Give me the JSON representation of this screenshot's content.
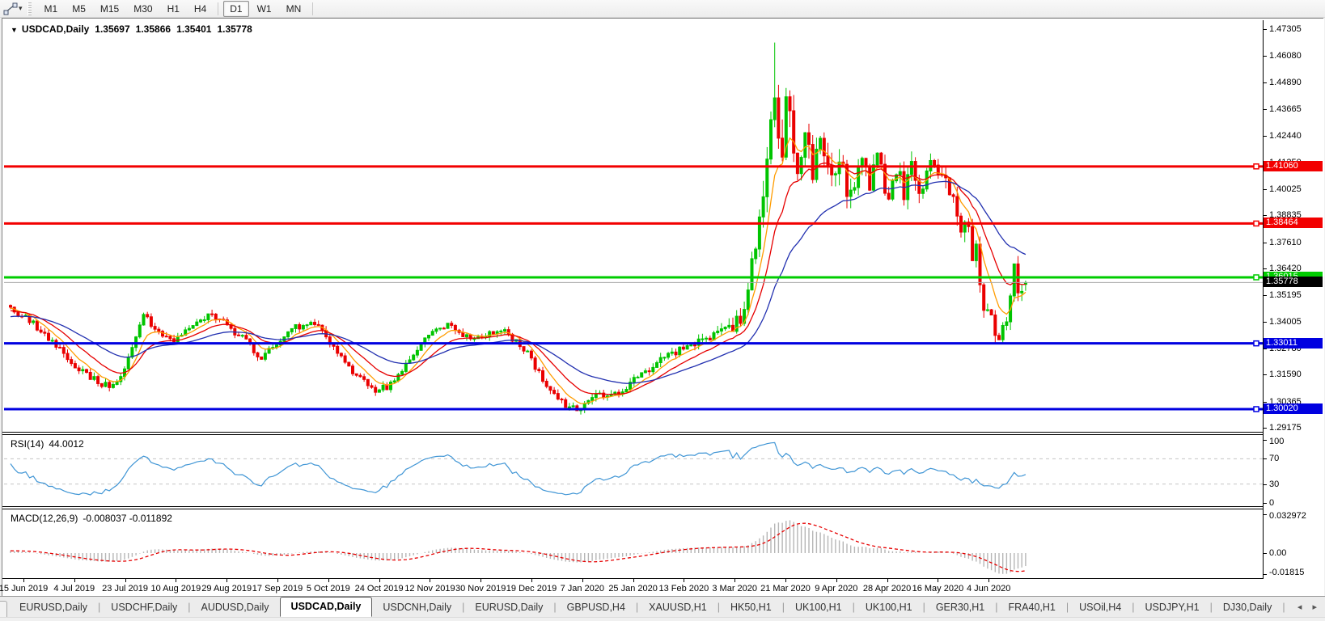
{
  "toolbar": {
    "dropdown_icon": "▾",
    "timeframes": [
      "M1",
      "M5",
      "M15",
      "M30",
      "H1",
      "H4",
      "D1",
      "W1",
      "MN"
    ],
    "active_timeframe": "D1",
    "group_break_after": "H4"
  },
  "chart_title": {
    "dropdown_glyph": "▼",
    "symbol": "USDCAD,Daily",
    "open": "1.35697",
    "high": "1.35866",
    "low": "1.35401",
    "close": "1.35778"
  },
  "chart_data": {
    "type": "candlestick",
    "symbol": "USDCAD",
    "timeframe": "Daily",
    "current_bar_ohlc": {
      "open": 1.35697,
      "high": 1.35866,
      "low": 1.35401,
      "close": 1.35778
    },
    "candle_colors": {
      "up": "#00c400",
      "down": "#ea0000"
    },
    "price_axis_ticks": [
      "1.47305",
      "1.46080",
      "1.44890",
      "1.43665",
      "1.42440",
      "1.41250",
      "1.40025",
      "1.38835",
      "1.37610",
      "1.36420",
      "1.35195",
      "1.34005",
      "1.32780",
      "1.31590",
      "1.30365",
      "1.29175"
    ],
    "date_axis_labels": [
      "15 Jun 2019",
      "4 Jul 2019",
      "23 Jul 2019",
      "10 Aug 2019",
      "29 Aug 2019",
      "17 Sep 2019",
      "5 Oct 2019",
      "24 Oct 2019",
      "12 Nov 2019",
      "30 Nov 2019",
      "19 Dec 2019",
      "7 Jan 2020",
      "25 Jan 2020",
      "13 Feb 2020",
      "3 Mar 2020",
      "21 Mar 2020",
      "9 Apr 2020",
      "28 Apr 2020",
      "16 May 2020",
      "4 Jun 2020"
    ],
    "bars_total": 268,
    "horizontal_lines": [
      {
        "price": 1.4106,
        "label": "1.41060",
        "color": "#f20000"
      },
      {
        "price": 1.38464,
        "label": "1.38464",
        "color": "#f20000"
      },
      {
        "price": 1.36015,
        "label": "1.36015",
        "color": "#00cc00"
      },
      {
        "price": 1.33011,
        "label": "1.33011",
        "color": "#0000e0"
      },
      {
        "price": 1.3002,
        "label": "1.30020",
        "color": "#0000e0"
      }
    ],
    "current_price": {
      "value": 1.35778,
      "label": "1.35778",
      "line_color": "#a8a8a8",
      "label_bg": "#000000"
    },
    "moving_averages": [
      {
        "name": "fast-ma",
        "period": 7,
        "color": "#ff9c00"
      },
      {
        "name": "medium-ma",
        "period": 15,
        "color": "#e60000"
      },
      {
        "name": "slow-ma",
        "period": 34,
        "color": "#2230b0"
      }
    ],
    "price_path": [
      [
        0,
        1.3462
      ],
      [
        3,
        1.3425
      ],
      [
        6,
        1.3388
      ],
      [
        9,
        1.3345
      ],
      [
        12,
        1.329
      ],
      [
        15,
        1.3235
      ],
      [
        18,
        1.3185
      ],
      [
        21,
        1.3148
      ],
      [
        24,
        1.3122
      ],
      [
        27,
        1.3108
      ],
      [
        29,
        1.3148
      ],
      [
        31,
        1.324
      ],
      [
        33,
        1.333
      ],
      [
        35,
        1.3424
      ],
      [
        37,
        1.3388
      ],
      [
        39,
        1.3348
      ],
      [
        41,
        1.3325
      ],
      [
        43,
        1.3314
      ],
      [
        45,
        1.334
      ],
      [
        47,
        1.3368
      ],
      [
        49,
        1.3392
      ],
      [
        51,
        1.3415
      ],
      [
        53,
        1.3432
      ],
      [
        55,
        1.3405
      ],
      [
        57,
        1.3382
      ],
      [
        59,
        1.3355
      ],
      [
        61,
        1.3328
      ],
      [
        63,
        1.3282
      ],
      [
        65,
        1.3228
      ],
      [
        67,
        1.3252
      ],
      [
        69,
        1.3285
      ],
      [
        71,
        1.3318
      ],
      [
        73,
        1.3348
      ],
      [
        75,
        1.3372
      ],
      [
        77,
        1.3392
      ],
      [
        79,
        1.3402
      ],
      [
        81,
        1.3372
      ],
      [
        83,
        1.333
      ],
      [
        85,
        1.3285
      ],
      [
        87,
        1.324
      ],
      [
        89,
        1.3198
      ],
      [
        91,
        1.3158
      ],
      [
        93,
        1.3122
      ],
      [
        95,
        1.3098
      ],
      [
        97,
        1.3088
      ],
      [
        99,
        1.3102
      ],
      [
        101,
        1.3135
      ],
      [
        103,
        1.3175
      ],
      [
        105,
        1.3222
      ],
      [
        107,
        1.3268
      ],
      [
        109,
        1.3312
      ],
      [
        111,
        1.3348
      ],
      [
        113,
        1.3368
      ],
      [
        115,
        1.3382
      ],
      [
        117,
        1.3362
      ],
      [
        119,
        1.334
      ],
      [
        121,
        1.3332
      ],
      [
        123,
        1.3338
      ],
      [
        125,
        1.3342
      ],
      [
        127,
        1.3352
      ],
      [
        129,
        1.336
      ],
      [
        131,
        1.3338
      ],
      [
        133,
        1.3308
      ],
      [
        135,
        1.3275
      ],
      [
        137,
        1.3228
      ],
      [
        139,
        1.317
      ],
      [
        141,
        1.3118
      ],
      [
        143,
        1.3068
      ],
      [
        145,
        1.3032
      ],
      [
        147,
        1.3012
      ],
      [
        149,
        1.3005
      ],
      [
        151,
        1.3032
      ],
      [
        153,
        1.3052
      ],
      [
        155,
        1.3062
      ],
      [
        157,
        1.305
      ],
      [
        159,
        1.3068
      ],
      [
        161,
        1.3092
      ],
      [
        163,
        1.3125
      ],
      [
        165,
        1.3152
      ],
      [
        167,
        1.3175
      ],
      [
        169,
        1.3195
      ],
      [
        171,
        1.3222
      ],
      [
        173,
        1.3245
      ],
      [
        175,
        1.3262
      ],
      [
        177,
        1.3268
      ],
      [
        179,
        1.3285
      ],
      [
        181,
        1.3302
      ],
      [
        183,
        1.3322
      ],
      [
        185,
        1.3335
      ],
      [
        187,
        1.3352
      ],
      [
        188,
        1.34
      ],
      [
        190,
        1.337
      ],
      [
        192,
        1.342
      ],
      [
        193,
        1.3485
      ],
      [
        194,
        1.356
      ],
      [
        195,
        1.364
      ],
      [
        196,
        1.3738
      ],
      [
        197,
        1.386
      ],
      [
        198,
        1.401
      ],
      [
        199,
        1.4195
      ],
      [
        200,
        1.439
      ],
      [
        201,
        1.448
      ],
      [
        202,
        1.431
      ],
      [
        203,
        1.418
      ],
      [
        204,
        1.442
      ],
      [
        205,
        1.4335
      ],
      [
        206,
        1.4215
      ],
      [
        207,
        1.4105
      ],
      [
        208,
        1.42
      ],
      [
        209,
        1.4295
      ],
      [
        210,
        1.419
      ],
      [
        211,
        1.4075
      ],
      [
        212,
        1.4135
      ],
      [
        213,
        1.421
      ],
      [
        214,
        1.415
      ],
      [
        215,
        1.4078
      ],
      [
        216,
        1.402
      ],
      [
        217,
        1.4085
      ],
      [
        218,
        1.415
      ],
      [
        219,
        1.4085
      ],
      [
        220,
        1.4015
      ],
      [
        221,
        1.3965
      ],
      [
        222,
        1.403
      ],
      [
        223,
        1.4105
      ],
      [
        224,
        1.417
      ],
      [
        225,
        1.4105
      ],
      [
        226,
        1.4035
      ],
      [
        227,
        1.409
      ],
      [
        228,
        1.4145
      ],
      [
        229,
        1.4075
      ],
      [
        230,
        1.4018
      ],
      [
        231,
        1.3975
      ],
      [
        232,
        1.404
      ],
      [
        233,
        1.4105
      ],
      [
        234,
        1.4052
      ],
      [
        235,
        1.3998
      ],
      [
        236,
        1.4048
      ],
      [
        237,
        1.4098
      ],
      [
        238,
        1.4042
      ],
      [
        239,
        1.3985
      ],
      [
        240,
        1.4032
      ],
      [
        241,
        1.4078
      ],
      [
        242,
        1.4115
      ],
      [
        243,
        1.4072
      ],
      [
        244,
        1.4058
      ],
      [
        245,
        1.4102
      ],
      [
        246,
        1.4048
      ],
      [
        247,
        1.4005
      ],
      [
        248,
        1.3952
      ],
      [
        249,
        1.3878
      ],
      [
        250,
        1.3815
      ],
      [
        251,
        1.384
      ],
      [
        252,
        1.3795
      ],
      [
        253,
        1.371
      ],
      [
        254,
        1.3788
      ],
      [
        255,
        1.3598
      ],
      [
        256,
        1.3478
      ],
      [
        257,
        1.3425
      ],
      [
        258,
        1.3398
      ],
      [
        259,
        1.3368
      ],
      [
        260,
        1.3345
      ],
      [
        261,
        1.3388
      ],
      [
        262,
        1.3425
      ],
      [
        263,
        1.3548
      ],
      [
        264,
        1.3642
      ],
      [
        265,
        1.3548
      ],
      [
        266,
        1.3562
      ],
      [
        267,
        1.35778
      ]
    ],
    "volatility_path": [
      [
        0,
        0.0042
      ],
      [
        30,
        0.004
      ],
      [
        90,
        0.0038
      ],
      [
        150,
        0.0038
      ],
      [
        185,
        0.0048
      ],
      [
        192,
        0.0085
      ],
      [
        197,
        0.013
      ],
      [
        201,
        0.02
      ],
      [
        206,
        0.015
      ],
      [
        215,
        0.012
      ],
      [
        235,
        0.0105
      ],
      [
        248,
        0.0095
      ],
      [
        258,
        0.0085
      ],
      [
        267,
        0.0075
      ]
    ],
    "extremes": [
      {
        "bar": 27,
        "low": 1.3095
      },
      {
        "bar": 97,
        "low": 1.3082
      },
      {
        "bar": 149,
        "low": 1.2996
      },
      {
        "bar": 201,
        "high": 1.46695
      },
      {
        "bar": 260,
        "low": 1.333
      },
      {
        "bar": 264,
        "high": 1.3655
      },
      {
        "bar": 267,
        "open": 1.35697,
        "high": 1.35866,
        "low": 1.35401,
        "close": 1.35778
      }
    ],
    "rsi": {
      "label": "RSI(14)",
      "value": "44.0012",
      "period": 14,
      "levels": [
        70,
        30
      ],
      "scale_labels": [
        "100",
        "70",
        "30",
        "0"
      ],
      "line_color": "#3f95d5",
      "level_color": "#c4c4c4"
    },
    "macd": {
      "label": "MACD(12,26,9)",
      "values": "-0.008037 -0.011892",
      "fast": 12,
      "slow": 26,
      "signal": 9,
      "scale_labels": [
        "0.032972",
        "0.00",
        "-0.01815"
      ],
      "scale_values": [
        0.032972,
        0.0,
        -0.01815
      ],
      "histogram_color": "#b6b6b6",
      "signal_color": "#e60000"
    }
  },
  "tabs": {
    "items": [
      {
        "label": "EURUSD,Daily"
      },
      {
        "label": "USDCHF,Daily"
      },
      {
        "label": "AUDUSD,Daily"
      },
      {
        "label": "USDCAD,Daily"
      },
      {
        "label": "USDCNH,Daily"
      },
      {
        "label": "EURUSD,Daily"
      },
      {
        "label": "GBPUSD,H4"
      },
      {
        "label": "XAUUSD,H1"
      },
      {
        "label": "HK50,H1"
      },
      {
        "label": "UK100,H1"
      },
      {
        "label": "UK100,H1"
      },
      {
        "label": "GER30,H1"
      },
      {
        "label": "FRA40,H1"
      },
      {
        "label": "USOil,H4"
      },
      {
        "label": "USDJPY,H1"
      },
      {
        "label": "DJ30,Daily"
      }
    ],
    "active_index": 3,
    "scroll_left": "◂",
    "scroll_right": "▸"
  }
}
